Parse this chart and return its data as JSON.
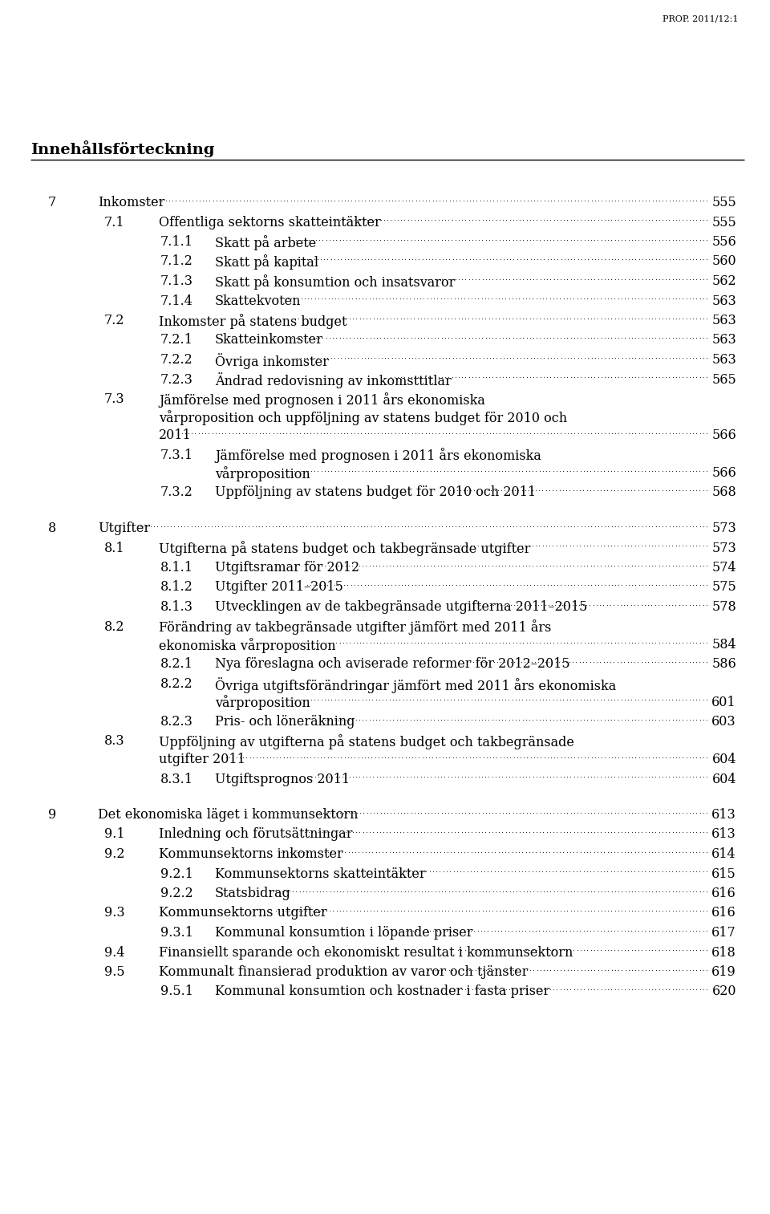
{
  "header": "PROP. 2011/12:1",
  "title": "Innehållsförteckning",
  "bg": "#ffffff",
  "tc": "#000000",
  "entries": [
    {
      "level": 0,
      "num": "7",
      "lines": [
        "Inkomster"
      ],
      "page": "555"
    },
    {
      "level": 1,
      "num": "7.1",
      "lines": [
        "Offentliga sektorns skatteintäkter"
      ],
      "page": "555"
    },
    {
      "level": 2,
      "num": "7.1.1",
      "lines": [
        "Skatt på arbete"
      ],
      "page": "556"
    },
    {
      "level": 2,
      "num": "7.1.2",
      "lines": [
        "Skatt på kapital"
      ],
      "page": "560"
    },
    {
      "level": 2,
      "num": "7.1.3",
      "lines": [
        "Skatt på konsumtion och insatsvaror"
      ],
      "page": "562"
    },
    {
      "level": 2,
      "num": "7.1.4",
      "lines": [
        "Skattekvoten"
      ],
      "page": "563"
    },
    {
      "level": 1,
      "num": "7.2",
      "lines": [
        "Inkomster på statens budget"
      ],
      "page": "563"
    },
    {
      "level": 2,
      "num": "7.2.1",
      "lines": [
        "Skatteinkomster"
      ],
      "page": "563"
    },
    {
      "level": 2,
      "num": "7.2.2",
      "lines": [
        "Övriga inkomster"
      ],
      "page": "563"
    },
    {
      "level": 2,
      "num": "7.2.3",
      "lines": [
        "Ändrad redovisning av inkomsttitlar"
      ],
      "page": "565"
    },
    {
      "level": 1,
      "num": "7.3",
      "lines": [
        "Jämförelse med prognosen i 2011 års ekonomiska",
        "vårproposition och uppföljning av statens budget för 2010 och",
        "2011"
      ],
      "page": "566"
    },
    {
      "level": 2,
      "num": "7.3.1",
      "lines": [
        "Jämförelse med prognosen i 2011 års ekonomiska",
        "vårproposition"
      ],
      "page": "566"
    },
    {
      "level": 2,
      "num": "7.3.2",
      "lines": [
        "Uppföljning av statens budget för 2010 och 2011"
      ],
      "page": "568"
    },
    {
      "level": 0,
      "num": "8",
      "lines": [
        "Utgifter"
      ],
      "page": "573"
    },
    {
      "level": 1,
      "num": "8.1",
      "lines": [
        "Utgifterna på statens budget och takbegränsade utgifter"
      ],
      "page": "573"
    },
    {
      "level": 2,
      "num": "8.1.1",
      "lines": [
        "Utgiftsramar för 2012"
      ],
      "page": "574"
    },
    {
      "level": 2,
      "num": "8.1.2",
      "lines": [
        "Utgifter 2011–2015"
      ],
      "page": "575"
    },
    {
      "level": 2,
      "num": "8.1.3",
      "lines": [
        "Utvecklingen av de takbegränsade utgifterna 2011–2015"
      ],
      "page": "578"
    },
    {
      "level": 1,
      "num": "8.2",
      "lines": [
        "Förändring av takbegränsade utgifter jämfört med 2011 års",
        "ekonomiska vårproposition"
      ],
      "page": "584"
    },
    {
      "level": 2,
      "num": "8.2.1",
      "lines": [
        "Nya föreslagna och aviserade reformer för 2012–2015"
      ],
      "page": "586"
    },
    {
      "level": 2,
      "num": "8.2.2",
      "lines": [
        "Övriga utgiftsförändringar jämfört med 2011 års ekonomiska",
        "vårproposition"
      ],
      "page": "601"
    },
    {
      "level": 2,
      "num": "8.2.3",
      "lines": [
        "Pris- och löneräkning"
      ],
      "page": "603"
    },
    {
      "level": 1,
      "num": "8.3",
      "lines": [
        "Uppföljning av utgifterna på statens budget och takbegränsade",
        "utgifter 2011"
      ],
      "page": "604"
    },
    {
      "level": 2,
      "num": "8.3.1",
      "lines": [
        "Utgiftsprognos 2011"
      ],
      "page": "604"
    },
    {
      "level": 0,
      "num": "9",
      "lines": [
        "Det ekonomiska läget i kommunsektorn"
      ],
      "page": "613"
    },
    {
      "level": 1,
      "num": "9.1",
      "lines": [
        "Inledning och förutsättningar"
      ],
      "page": "613"
    },
    {
      "level": 1,
      "num": "9.2",
      "lines": [
        "Kommunsektorns inkomster"
      ],
      "page": "614"
    },
    {
      "level": 2,
      "num": "9.2.1",
      "lines": [
        "Kommunsektorns skatteintäkter"
      ],
      "page": "615"
    },
    {
      "level": 2,
      "num": "9.2.2",
      "lines": [
        "Statsbidrag"
      ],
      "page": "616"
    },
    {
      "level": 1,
      "num": "9.3",
      "lines": [
        "Kommunsektorns utgifter"
      ],
      "page": "616"
    },
    {
      "level": 2,
      "num": "9.3.1",
      "lines": [
        "Kommunal konsumtion i löpande priser"
      ],
      "page": "617"
    },
    {
      "level": 1,
      "num": "9.4",
      "lines": [
        "Finansiellt sparande och ekonomiskt resultat i kommunsektorn"
      ],
      "page": "618"
    },
    {
      "level": 1,
      "num": "9.5",
      "lines": [
        "Kommunalt finansierad produktion av varor och tjänster"
      ],
      "page": "619"
    },
    {
      "level": 2,
      "num": "9.5.1",
      "lines": [
        "Kommunal konsumtion och kostnader i fasta priser"
      ],
      "page": "620"
    }
  ]
}
